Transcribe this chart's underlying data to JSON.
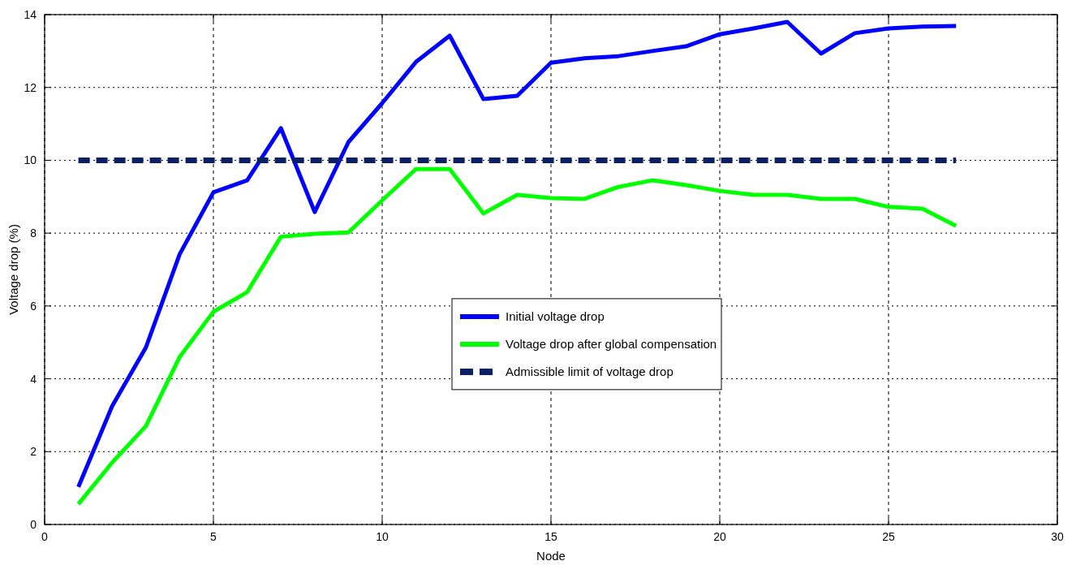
{
  "chart_data": {
    "type": "line",
    "xlabel": "Node",
    "ylabel": "Voltage drop (%)",
    "x": [
      1,
      2,
      3,
      4,
      5,
      6,
      7,
      8,
      9,
      10,
      11,
      12,
      13,
      14,
      15,
      16,
      17,
      18,
      19,
      20,
      21,
      22,
      23,
      24,
      25,
      26,
      27
    ],
    "series": [
      {
        "name": "Initial voltage drop",
        "color": "#0000ff",
        "values": [
          1.03,
          3.25,
          4.86,
          7.42,
          9.12,
          9.45,
          10.88,
          8.58,
          10.5,
          11.57,
          12.7,
          13.42,
          11.68,
          11.77,
          12.68,
          12.8,
          12.86,
          13.0,
          13.13,
          13.46,
          13.62,
          13.8,
          12.93,
          13.49,
          13.62,
          13.67,
          13.69
        ]
      },
      {
        "name": "Voltage drop after global compensation",
        "color": "#00ff00",
        "values": [
          0.56,
          1.7,
          2.7,
          4.6,
          5.84,
          6.38,
          7.9,
          7.98,
          8.02,
          8.9,
          9.76,
          9.76,
          8.54,
          9.05,
          8.96,
          8.94,
          9.27,
          9.45,
          9.32,
          9.16,
          9.05,
          9.05,
          8.94,
          8.94,
          8.72,
          8.67,
          8.2
        ]
      },
      {
        "name": "Admissible limit of voltage drop",
        "color": "#0b1f63",
        "line_style": "dashed",
        "x": [
          1,
          27
        ],
        "values": [
          10,
          10
        ]
      }
    ],
    "xlim": [
      0,
      30
    ],
    "xticks": [
      0,
      5,
      10,
      15,
      20,
      25,
      30
    ],
    "ylim": [
      0,
      14
    ],
    "yticks": [
      0,
      2,
      4,
      6,
      8,
      10,
      12,
      14
    ],
    "grid": true,
    "legend": "center",
    "line_style": "solid",
    "marker": "none"
  }
}
